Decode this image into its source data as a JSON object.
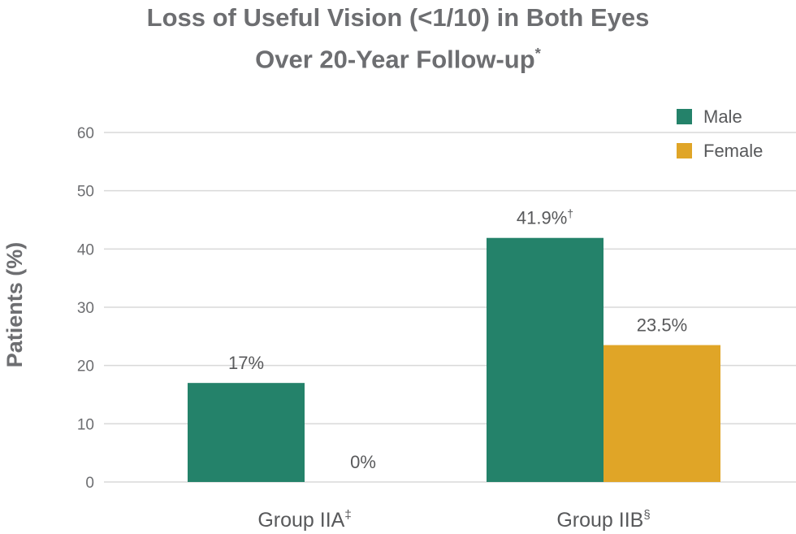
{
  "chart_data": {
    "type": "bar",
    "title_line1": "Loss of Useful Vision (<1/10) in Both Eyes",
    "title_line2": "Over 20-Year Follow-up",
    "title_mark": "*",
    "ylabel": "Patients (%)",
    "xlabel": "",
    "ylim": [
      0,
      60
    ],
    "yticks": [
      0,
      10,
      20,
      30,
      40,
      50,
      60
    ],
    "grid": true,
    "legend_position": "top-right",
    "categories": [
      {
        "label": "Group IIA",
        "mark": "‡"
      },
      {
        "label": "Group IIB",
        "mark": "§"
      }
    ],
    "series": [
      {
        "name": "Male",
        "color": "#24826a",
        "values": [
          17,
          41.9
        ],
        "labels": [
          "17%",
          "41.9%"
        ],
        "marks": [
          "",
          "†"
        ]
      },
      {
        "name": "Female",
        "color": "#e0a527",
        "values": [
          0,
          23.5
        ],
        "labels": [
          "0%",
          "23.5%"
        ],
        "marks": [
          "",
          ""
        ]
      }
    ]
  }
}
